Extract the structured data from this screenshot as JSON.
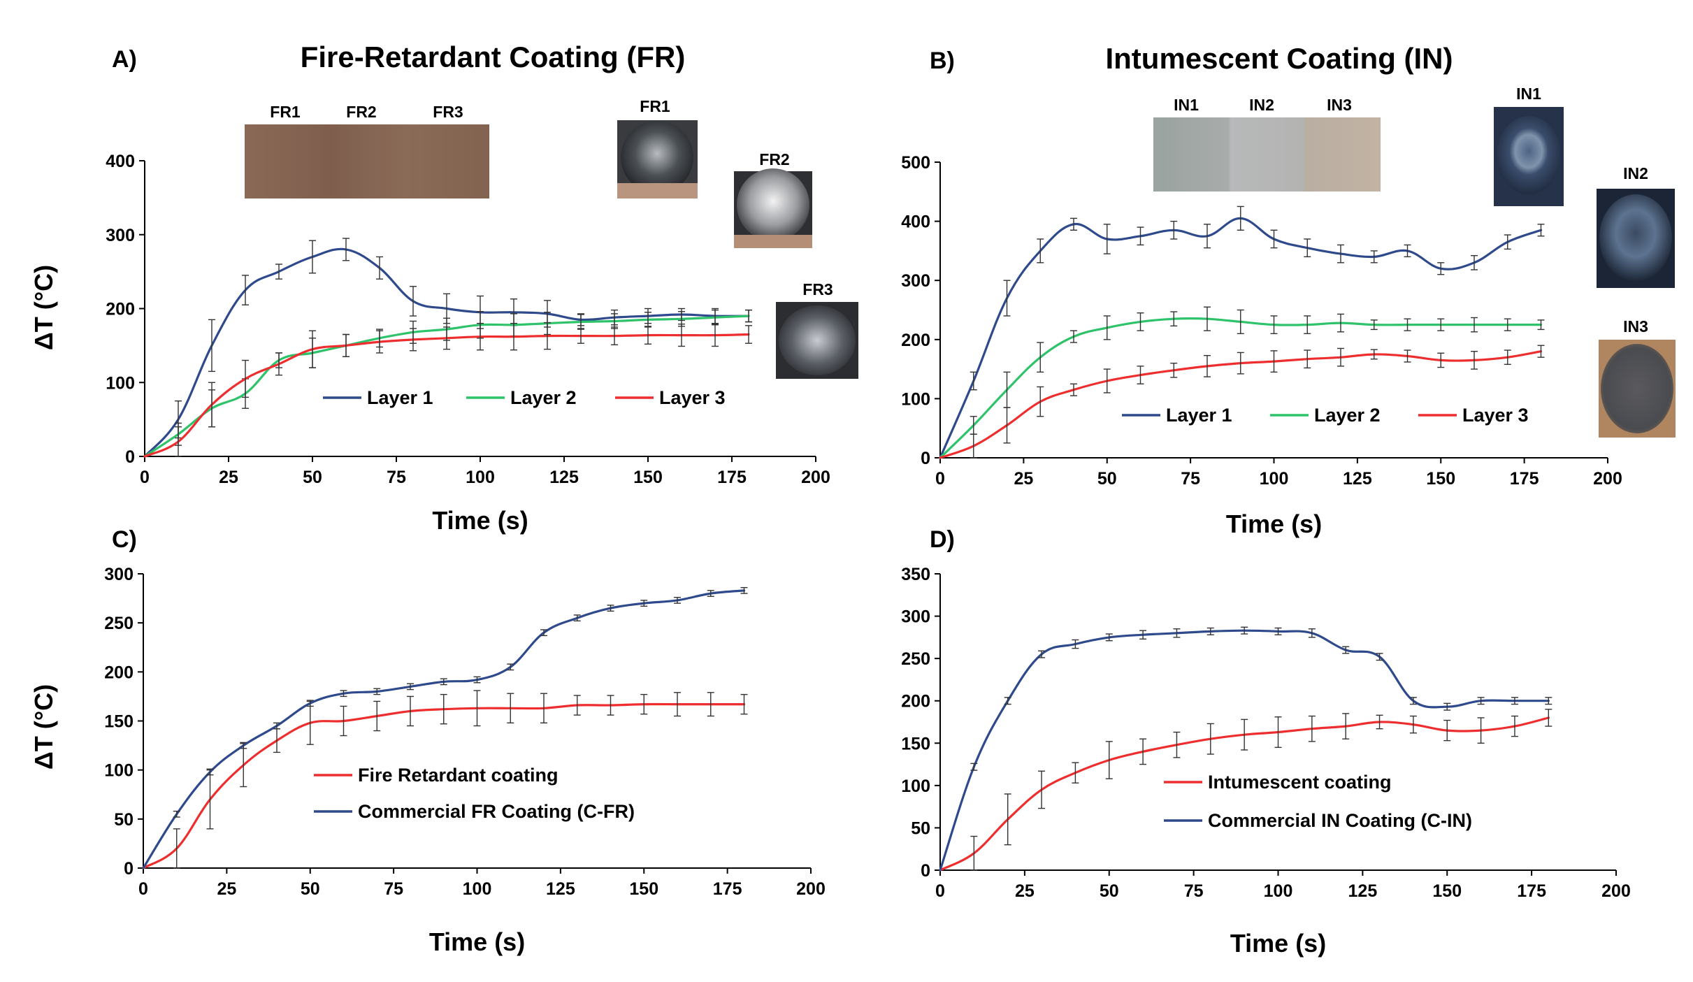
{
  "colors": {
    "layer1": "#2e4a8c",
    "layer2": "#2ec36a",
    "layer3": "#ee2e2e",
    "axis": "#000000"
  },
  "chart_data": [
    {
      "id": "A",
      "type": "line",
      "panel_letter": "A)",
      "title": "Fire-Retardant Coating (FR)",
      "xlabel": "Time (s)",
      "ylabel": "ΔT (°C)",
      "xlim": [
        0,
        200
      ],
      "ylim": [
        0,
        400
      ],
      "xticks": [
        0,
        25,
        50,
        75,
        100,
        125,
        150,
        175,
        200
      ],
      "yticks": [
        0,
        100,
        200,
        300,
        400
      ],
      "legend_position": "bottom-center",
      "x": [
        0,
        10,
        20,
        30,
        40,
        50,
        60,
        70,
        80,
        90,
        100,
        110,
        120,
        130,
        140,
        150,
        160,
        170,
        180
      ],
      "series": [
        {
          "name": "Layer 1",
          "color": "#2e4a8c",
          "values": [
            0,
            50,
            150,
            225,
            250,
            270,
            280,
            255,
            210,
            200,
            195,
            195,
            193,
            185,
            188,
            190,
            192,
            190,
            190
          ],
          "errors": [
            0,
            25,
            35,
            20,
            10,
            22,
            15,
            15,
            20,
            20,
            22,
            18,
            18,
            8,
            10,
            10,
            8,
            10,
            8
          ]
        },
        {
          "name": "Layer 2",
          "color": "#2ec36a",
          "values": [
            0,
            30,
            65,
            85,
            130,
            140,
            150,
            160,
            168,
            172,
            178,
            178,
            180,
            182,
            183,
            185,
            186,
            188,
            190
          ],
          "errors": [
            0,
            15,
            25,
            20,
            10,
            20,
            15,
            12,
            15,
            15,
            18,
            15,
            15,
            10,
            10,
            10,
            10,
            10,
            8
          ]
        },
        {
          "name": "Layer 3",
          "color": "#ee2e2e",
          "values": [
            0,
            20,
            70,
            105,
            125,
            145,
            150,
            155,
            158,
            160,
            162,
            162,
            163,
            163,
            163,
            164,
            164,
            164,
            165
          ],
          "errors": [
            0,
            20,
            30,
            25,
            15,
            25,
            15,
            15,
            15,
            15,
            18,
            18,
            18,
            10,
            12,
            12,
            15,
            15,
            12
          ]
        }
      ],
      "sample_strip": {
        "labels": [
          "FR1",
          "FR2",
          "FR3"
        ]
      },
      "photos": [
        "FR1",
        "FR2",
        "FR3"
      ]
    },
    {
      "id": "B",
      "type": "line",
      "panel_letter": "B)",
      "title": "Intumescent Coating (IN)",
      "xlabel": "Time (s)",
      "ylabel": "",
      "xlim": [
        0,
        200
      ],
      "ylim": [
        0,
        500
      ],
      "xticks": [
        0,
        25,
        50,
        75,
        100,
        125,
        150,
        175,
        200
      ],
      "yticks": [
        0,
        100,
        200,
        300,
        400,
        500
      ],
      "legend_position": "bottom-center",
      "x": [
        0,
        10,
        20,
        30,
        40,
        50,
        60,
        70,
        80,
        90,
        100,
        110,
        120,
        130,
        140,
        150,
        160,
        170,
        180
      ],
      "series": [
        {
          "name": "Layer 1",
          "color": "#2e4a8c",
          "values": [
            0,
            130,
            270,
            350,
            395,
            370,
            375,
            385,
            375,
            405,
            370,
            355,
            345,
            340,
            350,
            320,
            330,
            365,
            385
          ],
          "errors": [
            0,
            15,
            30,
            20,
            10,
            25,
            15,
            15,
            20,
            20,
            15,
            15,
            15,
            10,
            10,
            10,
            12,
            12,
            10
          ]
        },
        {
          "name": "Layer 2",
          "color": "#2ec36a",
          "values": [
            0,
            55,
            115,
            170,
            205,
            220,
            230,
            235,
            235,
            230,
            225,
            225,
            228,
            225,
            225,
            225,
            225,
            225,
            225
          ],
          "errors": [
            0,
            15,
            30,
            25,
            10,
            20,
            15,
            12,
            20,
            20,
            15,
            15,
            15,
            8,
            10,
            10,
            12,
            10,
            8
          ]
        },
        {
          "name": "Layer 3",
          "color": "#ee2e2e",
          "values": [
            0,
            20,
            55,
            95,
            115,
            130,
            140,
            148,
            155,
            160,
            163,
            167,
            170,
            175,
            172,
            165,
            165,
            170,
            180
          ],
          "errors": [
            0,
            20,
            30,
            25,
            10,
            20,
            15,
            12,
            18,
            18,
            18,
            15,
            15,
            8,
            10,
            12,
            15,
            12,
            10
          ]
        }
      ],
      "sample_strip": {
        "labels": [
          "IN1",
          "IN2",
          "IN3"
        ]
      },
      "photos": [
        "IN1",
        "IN2",
        "IN3"
      ]
    },
    {
      "id": "C",
      "type": "line",
      "panel_letter": "C)",
      "title": "",
      "xlabel": "Time (s)",
      "ylabel": "ΔT (°C)",
      "xlim": [
        0,
        200
      ],
      "ylim": [
        0,
        300
      ],
      "xticks": [
        0,
        25,
        50,
        75,
        100,
        125,
        150,
        175,
        200
      ],
      "yticks": [
        0,
        50,
        100,
        150,
        200,
        250,
        300
      ],
      "legend_position": "bottom-center",
      "x": [
        0,
        10,
        20,
        30,
        40,
        50,
        60,
        70,
        80,
        90,
        100,
        110,
        120,
        130,
        140,
        150,
        160,
        170,
        180
      ],
      "series": [
        {
          "name": "Fire Retardant coating",
          "color": "#ee2e2e",
          "values": [
            0,
            20,
            70,
            105,
            130,
            148,
            150,
            155,
            160,
            162,
            163,
            163,
            163,
            166,
            166,
            167,
            167,
            167,
            167
          ],
          "errors": [
            0,
            20,
            30,
            22,
            12,
            22,
            15,
            15,
            15,
            15,
            18,
            15,
            15,
            10,
            10,
            10,
            12,
            12,
            10
          ]
        },
        {
          "name": "Commercial FR Coating (C-FR)",
          "color": "#2e4a8c",
          "values": [
            0,
            55,
            98,
            125,
            145,
            168,
            178,
            180,
            185,
            190,
            192,
            205,
            240,
            255,
            265,
            270,
            273,
            280,
            283
          ],
          "errors": [
            0,
            3,
            3,
            3,
            3,
            3,
            3,
            3,
            3,
            3,
            3,
            3,
            3,
            3,
            3,
            3,
            3,
            3,
            3
          ]
        }
      ]
    },
    {
      "id": "D",
      "type": "line",
      "panel_letter": "D)",
      "title": "",
      "xlabel": "Time (s)",
      "ylabel": "",
      "xlim": [
        0,
        200
      ],
      "ylim": [
        0,
        350
      ],
      "xticks": [
        0,
        25,
        50,
        75,
        100,
        125,
        150,
        175,
        200
      ],
      "yticks": [
        0,
        50,
        100,
        150,
        200,
        250,
        300,
        350
      ],
      "legend_position": "bottom-center",
      "x": [
        0,
        10,
        20,
        30,
        40,
        50,
        60,
        70,
        80,
        90,
        100,
        110,
        120,
        130,
        140,
        150,
        160,
        170,
        180
      ],
      "series": [
        {
          "name": "Intumescent coating",
          "color": "#ee2e2e",
          "values": [
            0,
            20,
            60,
            95,
            115,
            130,
            140,
            148,
            155,
            160,
            163,
            167,
            170,
            175,
            172,
            165,
            165,
            170,
            180
          ],
          "errors": [
            0,
            20,
            30,
            22,
            12,
            22,
            15,
            15,
            18,
            18,
            18,
            15,
            15,
            8,
            10,
            12,
            15,
            12,
            10
          ]
        },
        {
          "name": "Commercial IN Coating (C-IN)",
          "color": "#2e4a8c",
          "values": [
            0,
            122,
            200,
            255,
            267,
            275,
            278,
            280,
            282,
            283,
            282,
            280,
            260,
            252,
            200,
            193,
            200,
            200,
            200
          ],
          "errors": [
            0,
            4,
            4,
            4,
            5,
            4,
            5,
            5,
            4,
            4,
            4,
            5,
            4,
            4,
            4,
            4,
            4,
            4,
            4
          ]
        }
      ]
    }
  ]
}
